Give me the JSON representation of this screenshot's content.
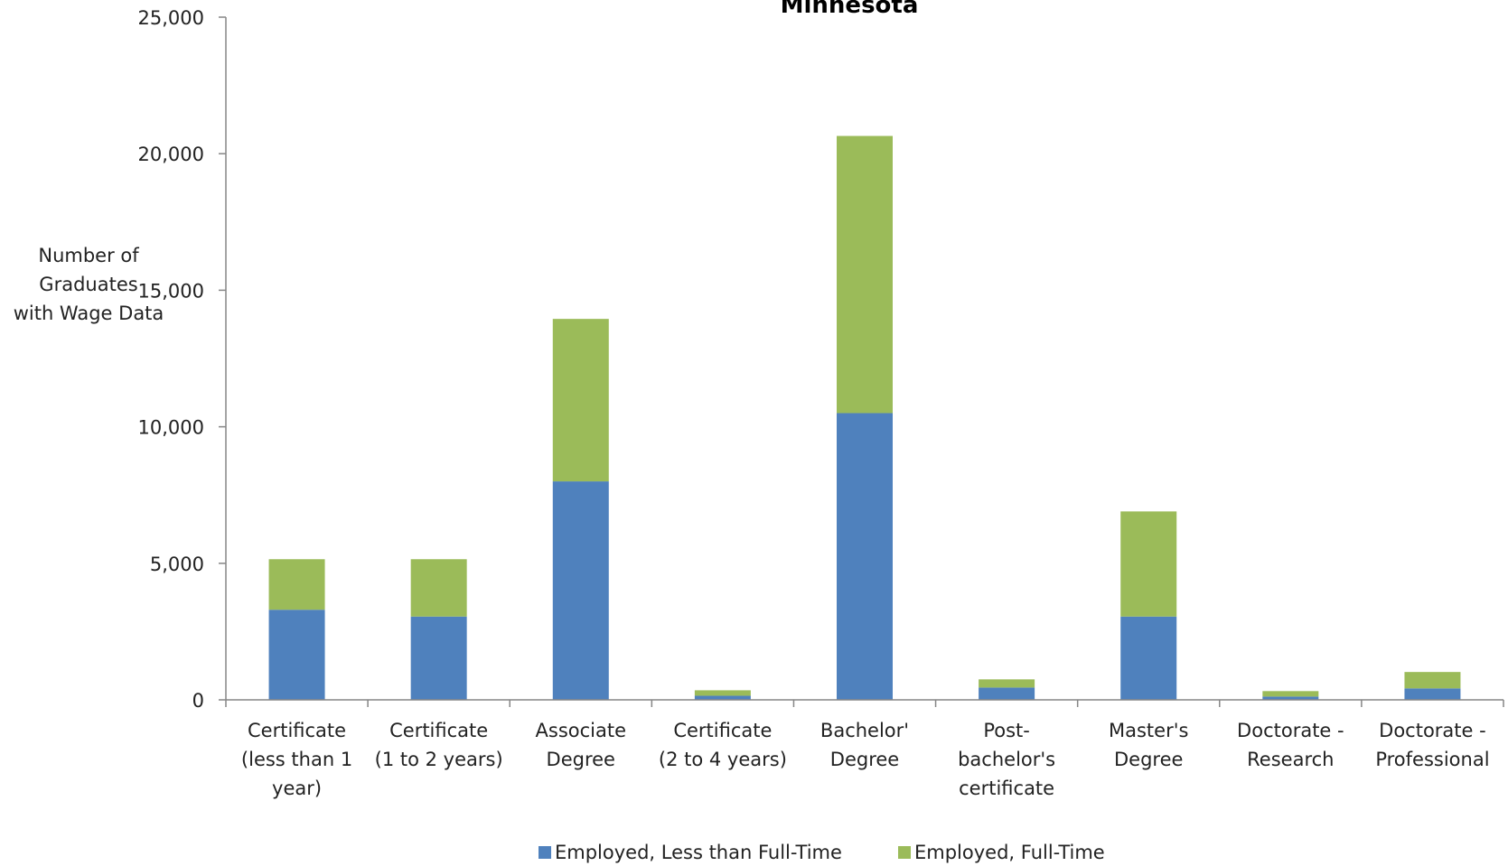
{
  "chart_data": {
    "type": "bar",
    "stacked": true,
    "title": "Minnesota",
    "ylabel": "Number of Graduates with Wage Data",
    "ylabel_lines": [
      "Number of",
      "Graduates",
      "with Wage Data"
    ],
    "ylim": [
      0,
      25000
    ],
    "yticks": [
      0,
      5000,
      10000,
      15000,
      20000,
      25000
    ],
    "ytick_labels": [
      "0",
      "5,000",
      "10,000",
      "15,000",
      "20,000",
      "25,000"
    ],
    "grid": false,
    "legend_position": "bottom",
    "categories": [
      "Certificate (less than 1 year)",
      "Certificate (1 to 2 years)",
      "Associate Degree",
      "Certificate (2 to 4 years)",
      "Bachelor' Degree",
      "Post-bachelor's certificate",
      "Master's Degree",
      "Doctorate - Research",
      "Doctorate - Professional"
    ],
    "category_label_lines": [
      [
        "Certificate",
        "(less than 1",
        "year)"
      ],
      [
        "Certificate",
        "(1 to 2 years)"
      ],
      [
        "Associate",
        "Degree"
      ],
      [
        "Certificate",
        "(2 to 4 years)"
      ],
      [
        "Bachelor'",
        "Degree"
      ],
      [
        "Post-",
        "bachelor's",
        "certificate"
      ],
      [
        "Master's",
        "Degree"
      ],
      [
        "Doctorate -",
        "Research"
      ],
      [
        "Doctorate -",
        "Professional"
      ]
    ],
    "series": [
      {
        "name": "Employed, Less than Full-Time",
        "color": "#4f81bd",
        "values": [
          3300,
          3050,
          8000,
          150,
          10500,
          450,
          3050,
          120,
          420
        ]
      },
      {
        "name": "Employed, Full-Time",
        "color": "#9bbb59",
        "values": [
          1850,
          2100,
          5950,
          200,
          10150,
          300,
          3850,
          200,
          600
        ]
      }
    ]
  }
}
